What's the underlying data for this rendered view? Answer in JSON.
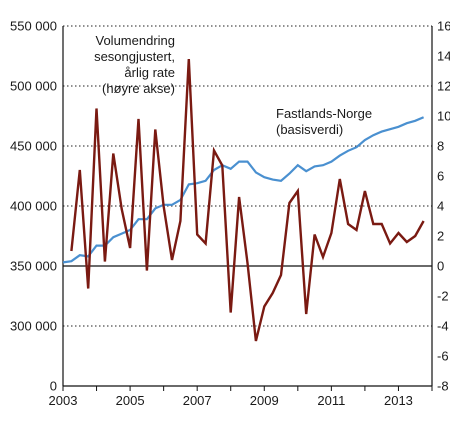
{
  "chart_data": {
    "type": "line",
    "x_ticks": [
      "2003",
      "2005",
      "2007",
      "2009",
      "2011",
      "2013"
    ],
    "y_left": {
      "range": [
        0,
        550000
      ],
      "ticks": [
        "0",
        "300 000",
        "350 000",
        "400 000",
        "450 000",
        "500 000",
        "550 000"
      ]
    },
    "y_right": {
      "range": [
        -8,
        16
      ],
      "ticks": [
        "-8",
        "-6",
        "-4",
        "-2",
        "0",
        "2",
        "4",
        "6",
        "8",
        "10",
        "12",
        "14",
        "16"
      ]
    },
    "annotations": [
      {
        "lines": [
          "Volumendring",
          "sesongjustert,",
          "årlig rate",
          "(høyre akse)"
        ]
      },
      {
        "lines": [
          "Fastlands-Norge",
          "(basisverdi)"
        ]
      }
    ],
    "colors": {
      "level": "#4a90d0",
      "growth": "#7a1a12"
    },
    "series": [
      {
        "axis": "left",
        "values": [
          [
            "2003Q1",
            353000
          ],
          [
            "2003Q2",
            354000
          ],
          [
            "2003Q3",
            359000
          ],
          [
            "2003Q4",
            358000
          ],
          [
            "2004Q1",
            367000
          ],
          [
            "2004Q2",
            367000
          ],
          [
            "2004Q3",
            374000
          ],
          [
            "2004Q4",
            377000
          ],
          [
            "2005Q1",
            380000
          ],
          [
            "2005Q2",
            389000
          ],
          [
            "2005Q3",
            389000
          ],
          [
            "2005Q4",
            398000
          ],
          [
            "2006Q1",
            401000
          ],
          [
            "2006Q2",
            401000
          ],
          [
            "2006Q3",
            405000
          ],
          [
            "2006Q4",
            418000
          ],
          [
            "2007Q1",
            419000
          ],
          [
            "2007Q2",
            421000
          ],
          [
            "2007Q3",
            430000
          ],
          [
            "2007Q4",
            434000
          ],
          [
            "2008Q1",
            431000
          ],
          [
            "2008Q2",
            437000
          ],
          [
            "2008Q3",
            437000
          ],
          [
            "2008Q4",
            428000
          ],
          [
            "2009Q1",
            424000
          ],
          [
            "2009Q2",
            422000
          ],
          [
            "2009Q3",
            421000
          ],
          [
            "2009Q4",
            427000
          ],
          [
            "2010Q1",
            434000
          ],
          [
            "2010Q2",
            429000
          ],
          [
            "2010Q3",
            433000
          ],
          [
            "2010Q4",
            434000
          ],
          [
            "2011Q1",
            437000
          ],
          [
            "2011Q2",
            442000
          ],
          [
            "2011Q3",
            446000
          ],
          [
            "2011Q4",
            449000
          ],
          [
            "2012Q1",
            455000
          ],
          [
            "2012Q2",
            459000
          ],
          [
            "2012Q3",
            462000
          ],
          [
            "2012Q4",
            464000
          ],
          [
            "2013Q1",
            466000
          ],
          [
            "2013Q2",
            469000
          ],
          [
            "2013Q3",
            471000
          ],
          [
            "2013Q4",
            474000
          ]
        ]
      },
      {
        "axis": "right",
        "values": [
          [
            "2003Q2",
            1.0
          ],
          [
            "2003Q3",
            6.4
          ],
          [
            "2003Q4",
            -1.5
          ],
          [
            "2004Q1",
            10.5
          ],
          [
            "2004Q2",
            0.3
          ],
          [
            "2004Q3",
            7.5
          ],
          [
            "2004Q4",
            3.8
          ],
          [
            "2005Q1",
            1.2
          ],
          [
            "2005Q2",
            9.8
          ],
          [
            "2005Q3",
            -0.3
          ],
          [
            "2005Q4",
            9.1
          ],
          [
            "2006Q1",
            4.0
          ],
          [
            "2006Q2",
            0.4
          ],
          [
            "2006Q3",
            3.0
          ],
          [
            "2006Q4",
            13.8
          ],
          [
            "2007Q1",
            2.1
          ],
          [
            "2007Q2",
            1.5
          ],
          [
            "2007Q3",
            7.7
          ],
          [
            "2007Q4",
            6.7
          ],
          [
            "2008Q1",
            -3.1
          ],
          [
            "2008Q2",
            4.6
          ],
          [
            "2008Q3",
            0.2
          ],
          [
            "2008Q4",
            -5.0
          ],
          [
            "2009Q1",
            -2.7
          ],
          [
            "2009Q2",
            -1.8
          ],
          [
            "2009Q3",
            -0.6
          ],
          [
            "2009Q4",
            4.2
          ],
          [
            "2010Q1",
            5.0
          ],
          [
            "2010Q2",
            -3.2
          ],
          [
            "2010Q3",
            2.1
          ],
          [
            "2010Q4",
            0.6
          ],
          [
            "2011Q1",
            2.2
          ],
          [
            "2011Q2",
            5.8
          ],
          [
            "2011Q3",
            2.8
          ],
          [
            "2011Q4",
            2.4
          ],
          [
            "2012Q1",
            5.0
          ],
          [
            "2012Q2",
            2.8
          ],
          [
            "2012Q3",
            2.8
          ],
          [
            "2012Q4",
            1.5
          ],
          [
            "2013Q1",
            2.2
          ],
          [
            "2013Q2",
            1.6
          ],
          [
            "2013Q3",
            2.0
          ],
          [
            "2013Q4",
            3.0
          ]
        ]
      }
    ]
  }
}
